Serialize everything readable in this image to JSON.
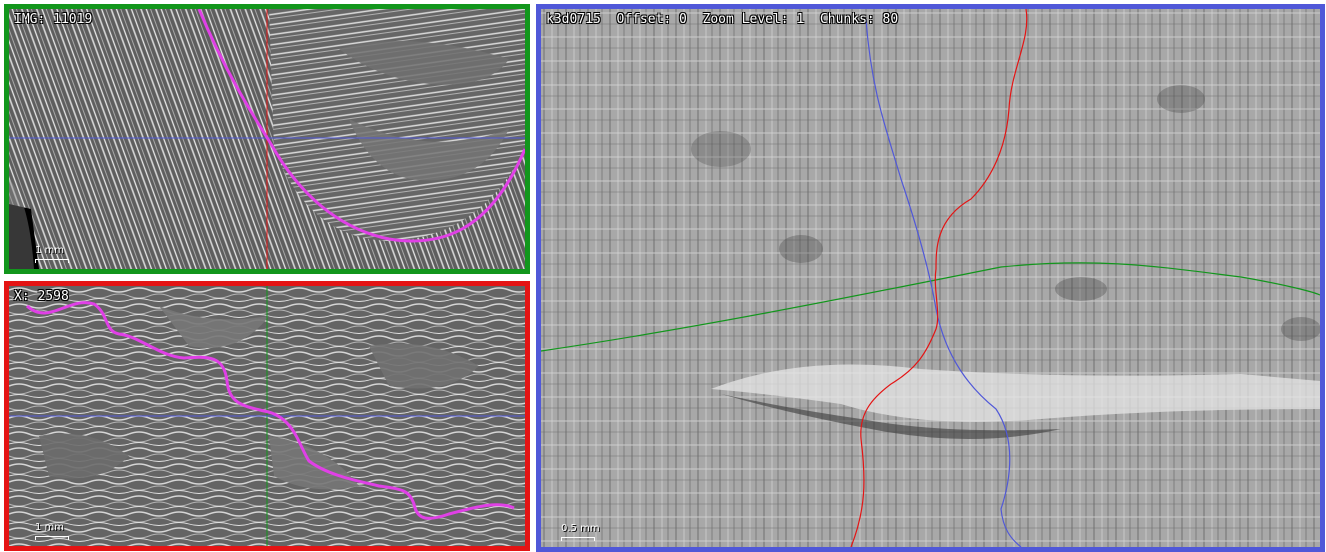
{
  "panels": {
    "top_left": {
      "label": "IMG: 11019",
      "scale_label": "1 mm",
      "border_color": "#12961c"
    },
    "bottom_left": {
      "label": "X: 2598",
      "scale_label": "1 mm",
      "border_color": "#e41414"
    },
    "right": {
      "label": "k3d0715  Offset: 0  Zoom Level: 1  Chunks: 80",
      "scale_label": "0.5 mm",
      "border_color": "#5058d8"
    }
  },
  "colors": {
    "segmentation_line": "#e040e6",
    "crosshair_red": "#e41414",
    "crosshair_green": "#12961c",
    "crosshair_blue": "#5058d8"
  }
}
